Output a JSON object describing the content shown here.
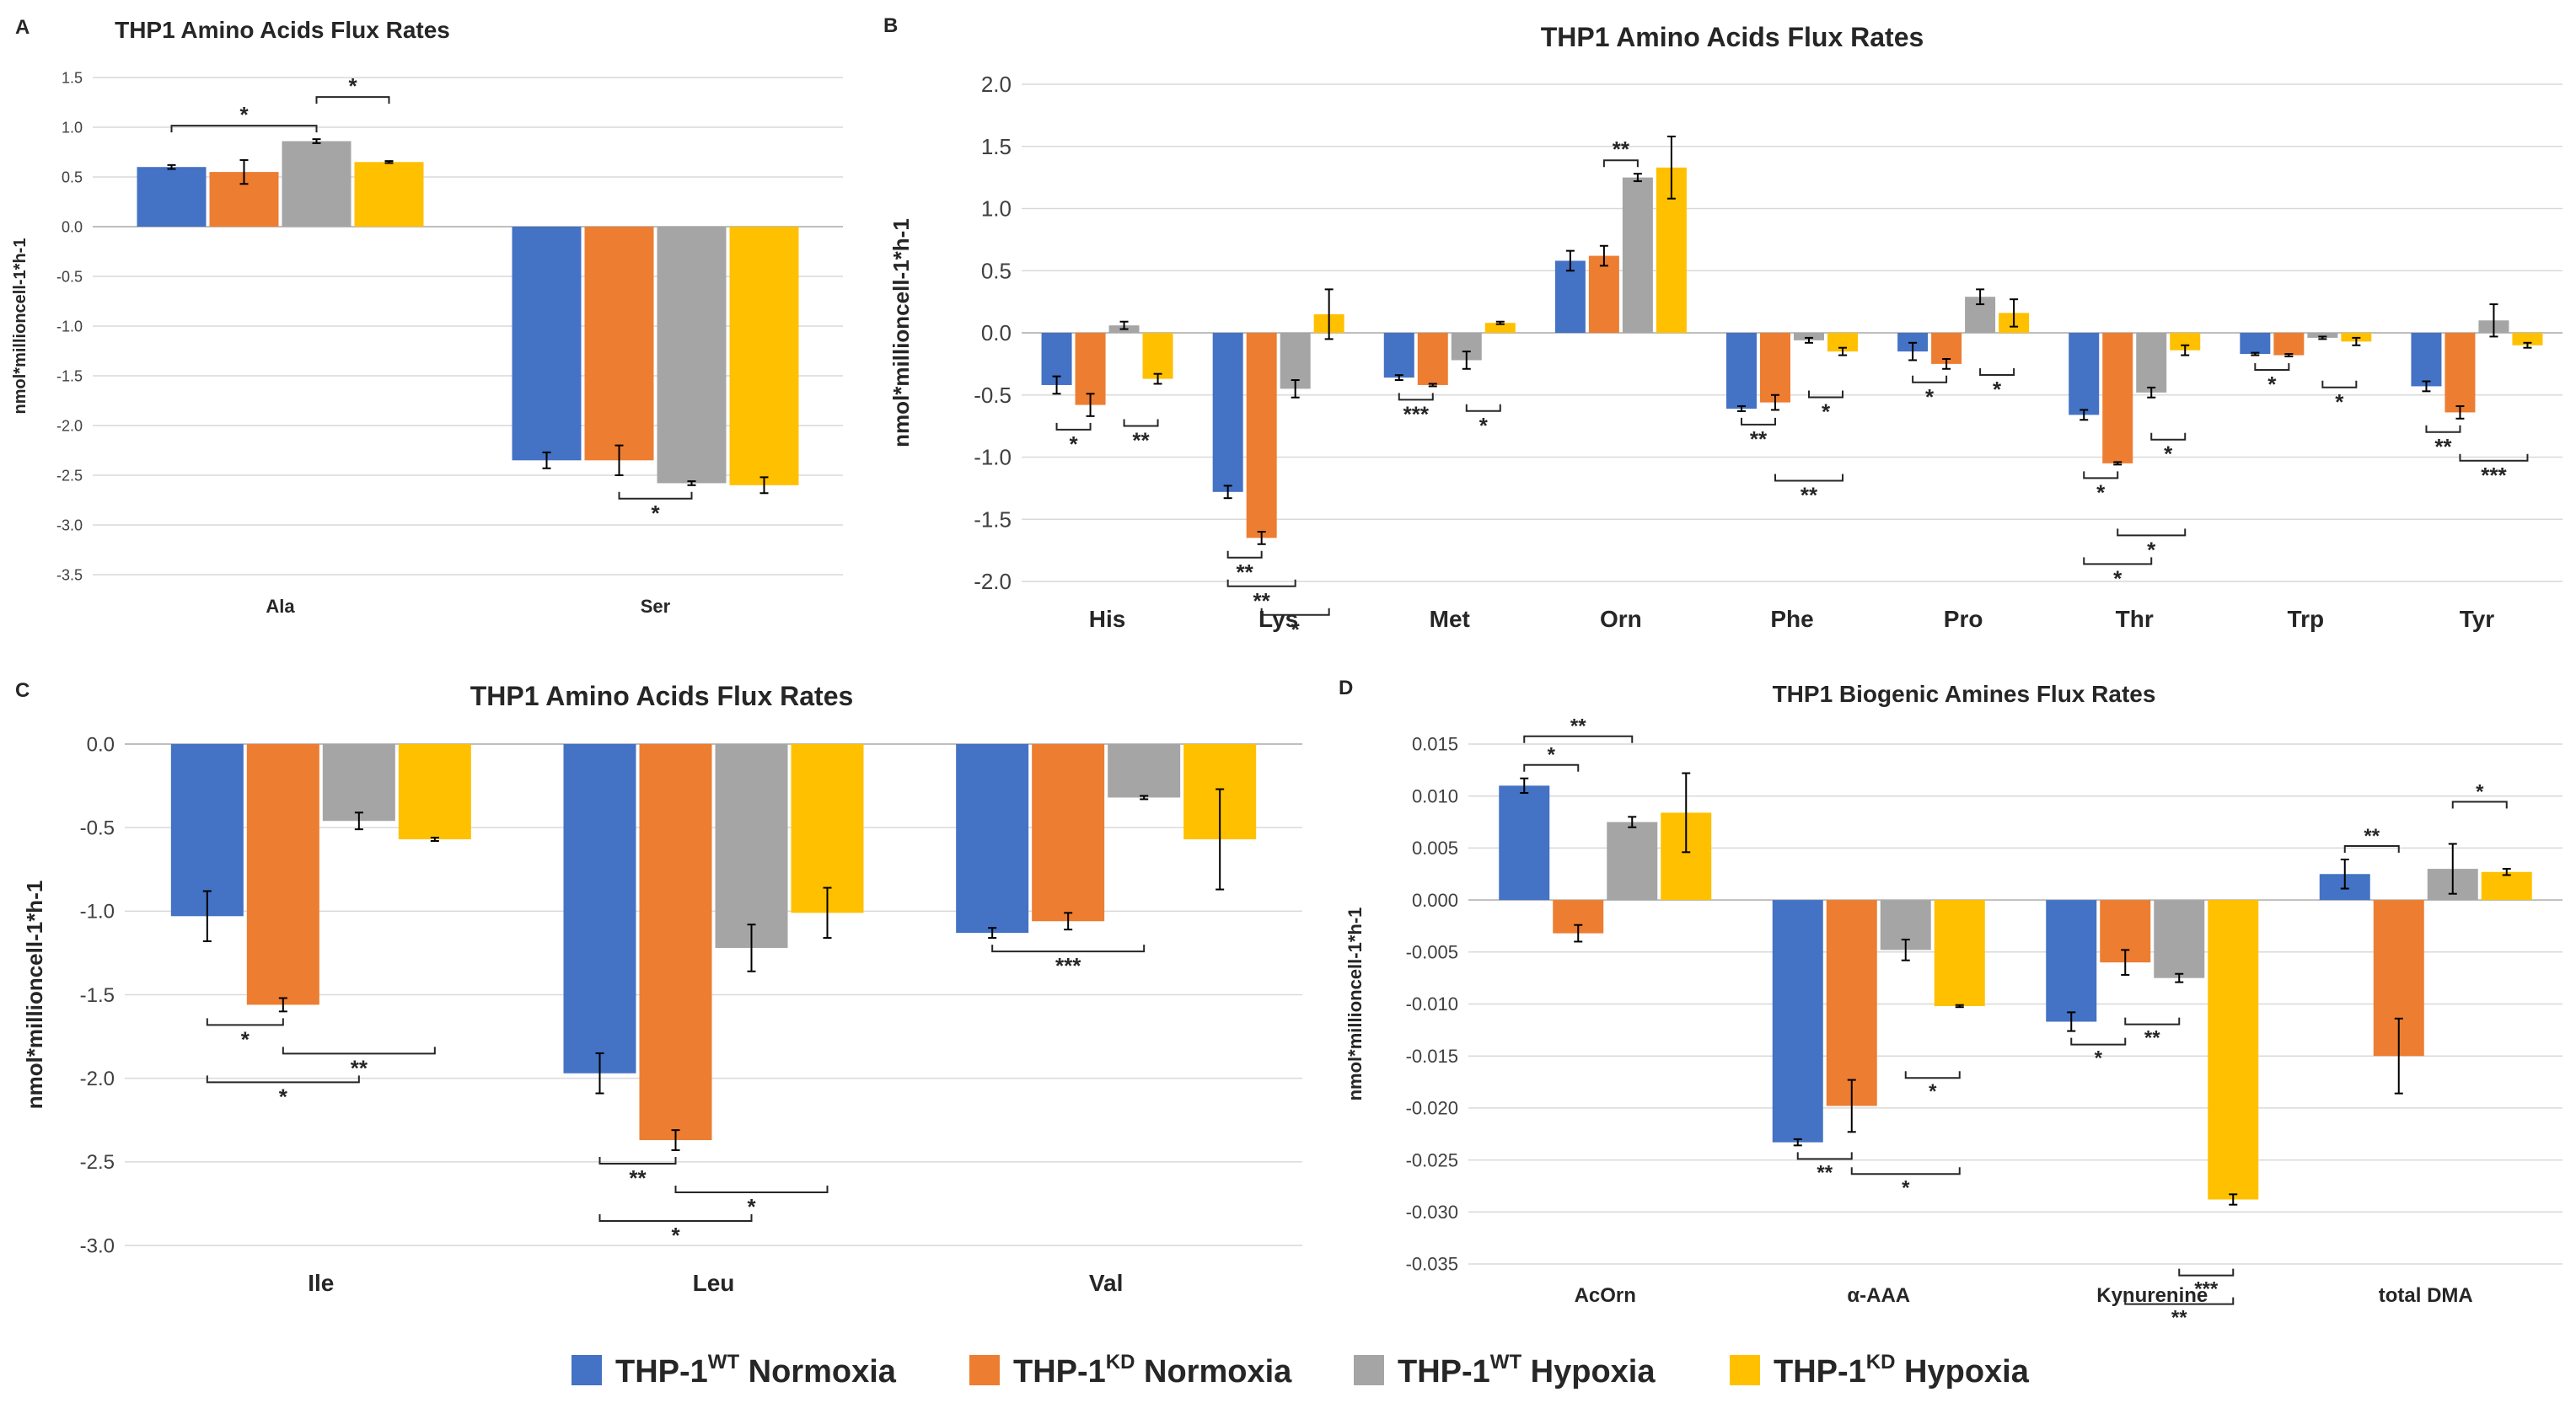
{
  "colors": {
    "wt_normoxia": "#4472C4",
    "kd_normoxia": "#ED7D31",
    "wt_hypoxia": "#A5A5A5",
    "kd_hypoxia": "#FFC000",
    "gridline": "#D9D9D9",
    "axis_text": "#404040"
  },
  "legend": {
    "items": [
      {
        "prefix": "THP-1",
        "sup": "WT",
        "suffix": " Normoxia",
        "color_key": "wt_normoxia"
      },
      {
        "prefix": "THP-1",
        "sup": "KD",
        "suffix": " Normoxia",
        "color_key": "kd_normoxia"
      },
      {
        "prefix": "THP-1",
        "sup": "WT",
        "suffix": " Hypoxia",
        "color_key": "wt_hypoxia"
      },
      {
        "prefix": "THP-1",
        "sup": "KD",
        "suffix": " Hypoxia",
        "color_key": "kd_hypoxia"
      }
    ]
  },
  "chart_data": [
    {
      "panel": "A",
      "type": "bar",
      "title": "THP1 Amino Acids Flux Rates",
      "ylabel": "nmol*millioncell-1*h-1",
      "ylim": [
        -3.5,
        1.5
      ],
      "yticks": [
        "1.5",
        "1.0",
        "0.5",
        "0.0",
        "-0.5",
        "-1.0",
        "-1.5",
        "-2.0",
        "-2.5",
        "-3.0",
        "-3.5"
      ],
      "categories": [
        "Ala",
        "Ser"
      ],
      "series": [
        {
          "name": "THP-1 WT Normoxia",
          "values": [
            0.6,
            -2.35
          ],
          "errors": [
            0.02,
            0.08
          ]
        },
        {
          "name": "THP-1 KD Normoxia",
          "values": [
            0.55,
            -2.35
          ],
          "errors": [
            0.12,
            0.15
          ]
        },
        {
          "name": "THP-1 WT Hypoxia",
          "values": [
            0.86,
            -2.58
          ],
          "errors": [
            0.02,
            0.02
          ]
        },
        {
          "name": "THP-1 KD Hypoxia",
          "values": [
            0.65,
            -2.6
          ],
          "errors": [
            0.01,
            0.08
          ]
        }
      ],
      "significance": [
        {
          "cat": 0,
          "from": 0,
          "to": 2,
          "label": "*",
          "side": "above"
        },
        {
          "cat": 0,
          "from": 2,
          "to": 3,
          "label": "*",
          "side": "above"
        },
        {
          "cat": 1,
          "from": 1,
          "to": 2,
          "label": "*",
          "side": "below"
        }
      ]
    },
    {
      "panel": "B",
      "type": "bar",
      "title": "THP1 Amino Acids Flux Rates",
      "ylabel": "nmol*millioncell-1*h-1",
      "ylim": [
        -2.0,
        2.0
      ],
      "yticks": [
        "2.0",
        "1.5",
        "1.0",
        "0.5",
        "0.0",
        "-0.5",
        "-1.0",
        "-1.5",
        "-2.0"
      ],
      "categories": [
        "His",
        "Lys",
        "Met",
        "Orn",
        "Phe",
        "Pro",
        "Thr",
        "Trp",
        "Tyr"
      ],
      "series": [
        {
          "name": "THP-1 WT Normoxia",
          "values": [
            -0.42,
            -1.28,
            -0.36,
            0.58,
            -0.61,
            -0.15,
            -0.66,
            -0.17,
            -0.43
          ],
          "errors": [
            0.07,
            0.05,
            0.02,
            0.08,
            0.02,
            0.07,
            0.04,
            0.01,
            0.04
          ]
        },
        {
          "name": "THP-1 KD Normoxia",
          "values": [
            -0.58,
            -1.65,
            -0.42,
            0.62,
            -0.56,
            -0.25,
            -1.05,
            -0.18,
            -0.64
          ],
          "errors": [
            0.09,
            0.05,
            0.01,
            0.08,
            0.06,
            0.04,
            0.01,
            0.01,
            0.05
          ]
        },
        {
          "name": "THP-1 WT Hypoxia",
          "values": [
            0.06,
            -0.45,
            -0.22,
            1.25,
            -0.06,
            0.29,
            -0.48,
            -0.04,
            0.1
          ],
          "errors": [
            0.03,
            0.07,
            0.07,
            0.03,
            0.02,
            0.06,
            0.04,
            0.01,
            0.13
          ]
        },
        {
          "name": "THP-1 KD Hypoxia",
          "values": [
            -0.37,
            0.15,
            0.08,
            1.33,
            -0.15,
            0.16,
            -0.14,
            -0.07,
            -0.1
          ],
          "errors": [
            0.04,
            0.2,
            0.01,
            0.25,
            0.03,
            0.11,
            0.04,
            0.03,
            0.02
          ]
        }
      ],
      "significance": [
        {
          "cat": 0,
          "from": 0,
          "to": 1,
          "label": "*",
          "side": "below"
        },
        {
          "cat": 0,
          "from": 2,
          "to": 3,
          "label": "**",
          "side": "below"
        },
        {
          "cat": 1,
          "from": 0,
          "to": 1,
          "label": "**",
          "side": "below"
        },
        {
          "cat": 1,
          "from": 0,
          "to": 2,
          "label": "**",
          "side": "below"
        },
        {
          "cat": 1,
          "from": 1,
          "to": 3,
          "label": "*",
          "side": "below"
        },
        {
          "cat": 2,
          "from": 0,
          "to": 1,
          "label": "***",
          "side": "below"
        },
        {
          "cat": 2,
          "from": 2,
          "to": 3,
          "label": "*",
          "side": "below"
        },
        {
          "cat": 3,
          "from": 1,
          "to": 2,
          "label": "**",
          "side": "above"
        },
        {
          "cat": 4,
          "from": 0,
          "to": 1,
          "label": "**",
          "side": "below"
        },
        {
          "cat": 4,
          "from": 2,
          "to": 3,
          "label": "*",
          "side": "below"
        },
        {
          "cat": 4,
          "from": 1,
          "to": 3,
          "label": "**",
          "side": "below"
        },
        {
          "cat": 5,
          "from": 0,
          "to": 1,
          "label": "*",
          "side": "below"
        },
        {
          "cat": 5,
          "from": 2,
          "to": 3,
          "label": "*",
          "side": "below"
        },
        {
          "cat": 6,
          "from": 0,
          "to": 1,
          "label": "*",
          "side": "below"
        },
        {
          "cat": 6,
          "from": 2,
          "to": 3,
          "label": "*",
          "side": "below"
        },
        {
          "cat": 6,
          "from": 1,
          "to": 3,
          "label": "*",
          "side": "below"
        },
        {
          "cat": 6,
          "from": 0,
          "to": 2,
          "label": "*",
          "side": "below"
        },
        {
          "cat": 7,
          "from": 0,
          "to": 1,
          "label": "*",
          "side": "below"
        },
        {
          "cat": 7,
          "from": 2,
          "to": 3,
          "label": "*",
          "side": "below"
        },
        {
          "cat": 8,
          "from": 0,
          "to": 1,
          "label": "**",
          "side": "below"
        },
        {
          "cat": 8,
          "from": 1,
          "to": 3,
          "label": "***",
          "side": "below"
        }
      ]
    },
    {
      "panel": "C",
      "type": "bar",
      "title": "THP1 Amino Acids Flux Rates",
      "ylabel": "nmol*millioncell-1*h-1",
      "ylim": [
        -3.0,
        0.0
      ],
      "yticks": [
        "0.0",
        "-0.5",
        "-1.0",
        "-1.5",
        "-2.0",
        "-2.5",
        "-3.0"
      ],
      "categories": [
        "Ile",
        "Leu",
        "Val"
      ],
      "series": [
        {
          "name": "THP-1 WT Normoxia",
          "values": [
            -1.03,
            -1.97,
            -1.13
          ],
          "errors": [
            0.15,
            0.12,
            0.03
          ]
        },
        {
          "name": "THP-1 KD Normoxia",
          "values": [
            -1.56,
            -2.37,
            -1.06
          ],
          "errors": [
            0.04,
            0.06,
            0.05
          ]
        },
        {
          "name": "THP-1 WT Hypoxia",
          "values": [
            -0.46,
            -1.22,
            -0.32
          ],
          "errors": [
            0.05,
            0.14,
            0.01
          ]
        },
        {
          "name": "THP-1 KD Hypoxia",
          "values": [
            -0.57,
            -1.01,
            -0.57
          ],
          "errors": [
            0.01,
            0.15,
            0.3
          ]
        }
      ],
      "significance": [
        {
          "cat": 0,
          "from": 0,
          "to": 1,
          "label": "*",
          "side": "below"
        },
        {
          "cat": 0,
          "from": 1,
          "to": 3,
          "label": "**",
          "side": "below"
        },
        {
          "cat": 0,
          "from": 0,
          "to": 2,
          "label": "*",
          "side": "below"
        },
        {
          "cat": 1,
          "from": 0,
          "to": 1,
          "label": "**",
          "side": "below"
        },
        {
          "cat": 1,
          "from": 1,
          "to": 3,
          "label": "*",
          "side": "below"
        },
        {
          "cat": 1,
          "from": 0,
          "to": 2,
          "label": "*",
          "side": "below"
        },
        {
          "cat": 2,
          "from": 0,
          "to": 2,
          "label": "***",
          "side": "below"
        }
      ]
    },
    {
      "panel": "D",
      "type": "bar",
      "title": "THP1 Biogenic Amines Flux Rates",
      "ylabel": "nmol*millioncell-1*h-1",
      "ylim": [
        -0.035,
        0.015
      ],
      "yticks": [
        "0.015",
        "0.010",
        "0.005",
        "0.000",
        "-0.005",
        "-0.010",
        "-0.015",
        "-0.020",
        "-0.025",
        "-0.030",
        "-0.035"
      ],
      "categories": [
        "AcOrn",
        "α-AAA",
        "Kynurenine",
        "total DMA"
      ],
      "series": [
        {
          "name": "THP-1 WT Normoxia",
          "values": [
            0.011,
            -0.0233,
            -0.0117,
            0.0025
          ],
          "errors": [
            0.0007,
            0.0003,
            0.0009,
            0.0014
          ]
        },
        {
          "name": "THP-1 KD Normoxia",
          "values": [
            -0.0032,
            -0.0198,
            -0.006,
            -0.015
          ],
          "errors": [
            0.0008,
            0.0025,
            0.0012,
            0.0036
          ]
        },
        {
          "name": "THP-1 WT Hypoxia",
          "values": [
            0.0075,
            -0.0048,
            -0.0075,
            0.003
          ],
          "errors": [
            0.0005,
            0.001,
            0.0004,
            0.0024
          ]
        },
        {
          "name": "THP-1 KD Hypoxia",
          "values": [
            0.0084,
            -0.0102,
            -0.0288,
            0.0027
          ],
          "errors": [
            0.0038,
            0.0001,
            0.0005,
            0.0003
          ]
        }
      ],
      "significance": [
        {
          "cat": 0,
          "from": 0,
          "to": 1,
          "label": "*",
          "side": "above"
        },
        {
          "cat": 0,
          "from": 0,
          "to": 2,
          "label": "**",
          "side": "above"
        },
        {
          "cat": 1,
          "from": 0,
          "to": 1,
          "label": "**",
          "side": "below"
        },
        {
          "cat": 1,
          "from": 1,
          "to": 3,
          "label": "*",
          "side": "below"
        },
        {
          "cat": 1,
          "from": 2,
          "to": 3,
          "label": "*",
          "side": "below"
        },
        {
          "cat": 2,
          "from": 0,
          "to": 1,
          "label": "*",
          "side": "below"
        },
        {
          "cat": 2,
          "from": 1,
          "to": 2,
          "label": "**",
          "side": "below"
        },
        {
          "cat": 2,
          "from": 2,
          "to": 3,
          "label": "***",
          "side": "below"
        },
        {
          "cat": 2,
          "from": 1,
          "to": 3,
          "label": "**",
          "side": "below"
        },
        {
          "cat": 3,
          "from": 0,
          "to": 1,
          "label": "**",
          "side": "above"
        },
        {
          "cat": 3,
          "from": 2,
          "to": 3,
          "label": "*",
          "side": "above"
        }
      ]
    }
  ]
}
